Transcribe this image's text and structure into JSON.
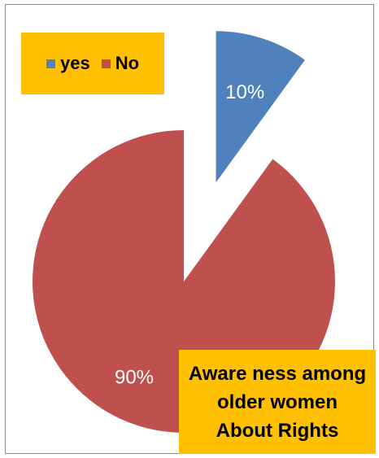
{
  "chart_data": {
    "type": "pie",
    "categories": [
      "yes",
      "No"
    ],
    "values": [
      10,
      90
    ],
    "data_labels": [
      "10%",
      "90%"
    ],
    "colors": [
      "#4f81bd",
      "#c0504d"
    ],
    "exploded": [
      true,
      false
    ],
    "legend_position": "top-left",
    "title_lines": [
      "Aware ness among",
      "older women",
      "About Rights"
    ]
  }
}
